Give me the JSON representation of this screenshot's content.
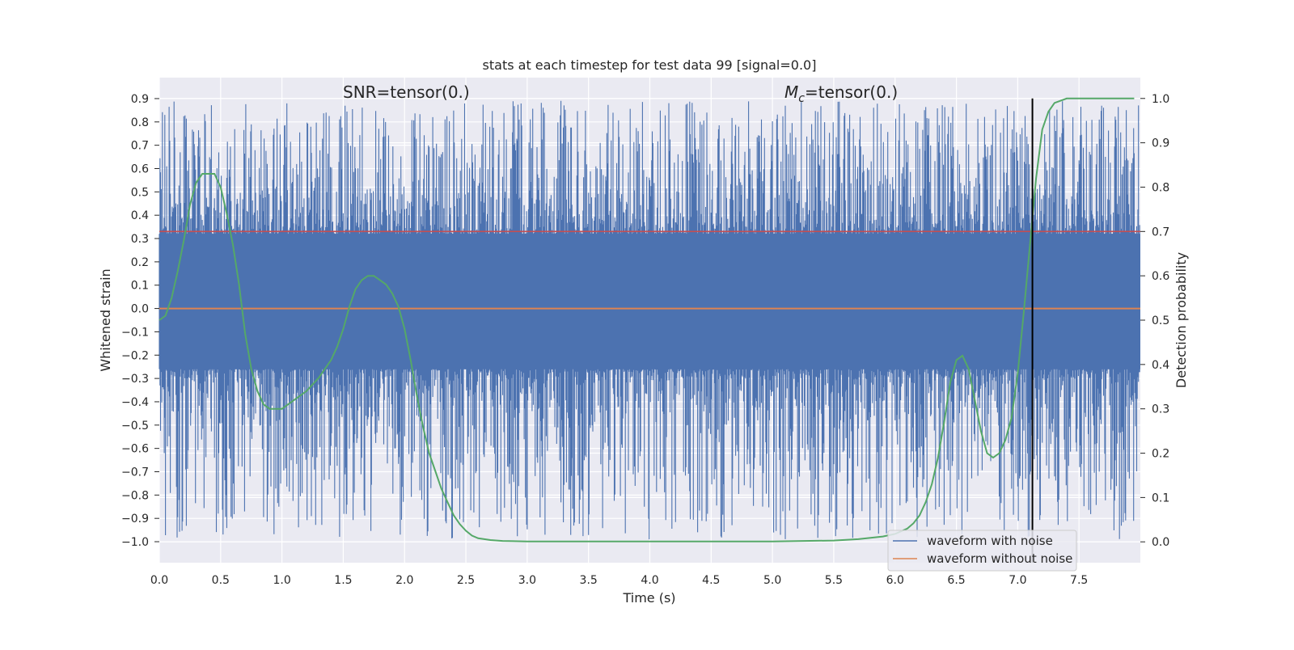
{
  "chart_data": {
    "type": "line",
    "title": "stats at each timestep for test data 99 [signal=0.0]",
    "xlabel": "Time (s)",
    "ylabel": "Whitened strain",
    "y2label": "Detection probability",
    "xlim": [
      0.0,
      8.0
    ],
    "ylim": [
      -1.09,
      0.99
    ],
    "y2lim": [
      -0.047,
      1.047
    ],
    "x_ticks": [
      0.0,
      0.5,
      1.0,
      1.5,
      2.0,
      2.5,
      3.0,
      3.5,
      4.0,
      4.5,
      5.0,
      5.5,
      6.0,
      6.5,
      7.0,
      7.5
    ],
    "x_tick_labels": [
      "0.0",
      "0.5",
      "1.0",
      "1.5",
      "2.0",
      "2.5",
      "3.0",
      "3.5",
      "4.0",
      "4.5",
      "5.0",
      "5.5",
      "6.0",
      "6.5",
      "7.0",
      "7.5"
    ],
    "y_ticks": [
      0.9,
      0.8,
      0.7,
      0.6,
      0.5,
      0.4,
      0.3,
      0.2,
      0.1,
      0.0,
      -0.1,
      -0.2,
      -0.3,
      -0.4,
      -0.5,
      -0.6,
      -0.7,
      -0.8,
      -0.9,
      -1.0
    ],
    "y_tick_labels": [
      "0.9",
      "0.8",
      "0.7",
      "0.6",
      "0.5",
      "0.4",
      "0.3",
      "0.2",
      "0.1",
      "0.0",
      "−0.1",
      "−0.2",
      "−0.3",
      "−0.4",
      "−0.5",
      "−0.6",
      "−0.7",
      "−0.8",
      "−0.9",
      "−1.0"
    ],
    "y2_ticks": [
      1.0,
      0.9,
      0.8,
      0.7,
      0.6,
      0.5,
      0.4,
      0.3,
      0.2,
      0.1,
      0.0
    ],
    "y2_tick_labels": [
      "1.0",
      "0.9",
      "0.8",
      "0.7",
      "0.6",
      "0.5",
      "0.4",
      "0.3",
      "0.2",
      "0.1",
      "0.0"
    ],
    "annotations": {
      "snr": "SNR=tensor(0.)",
      "mc_symbol": "M",
      "mc_subscript": "c",
      "mc_value": "=tensor(0.)"
    },
    "grid": true,
    "legend_position": "bottom-right",
    "series": [
      {
        "name": "waveform with noise",
        "color": "#4c72b0",
        "kind": "dense-noise",
        "typical_range": [
          -0.26,
          0.32
        ],
        "peak_max": 0.89,
        "peak_min": -0.99
      },
      {
        "name": "waveform without noise",
        "color": "#dd8452",
        "y_constant": 0.0
      }
    ],
    "probability_curve": {
      "color": "#55a868",
      "axis": "right",
      "x": [
        0.0,
        0.05,
        0.1,
        0.15,
        0.2,
        0.25,
        0.3,
        0.35,
        0.4,
        0.45,
        0.5,
        0.55,
        0.6,
        0.65,
        0.7,
        0.75,
        0.8,
        0.85,
        0.9,
        0.95,
        1.0,
        1.05,
        1.1,
        1.2,
        1.3,
        1.4,
        1.45,
        1.5,
        1.55,
        1.6,
        1.65,
        1.7,
        1.75,
        1.8,
        1.85,
        1.9,
        1.95,
        2.0,
        2.05,
        2.1,
        2.15,
        2.2,
        2.25,
        2.3,
        2.35,
        2.4,
        2.45,
        2.5,
        2.55,
        2.6,
        2.7,
        2.8,
        3.0,
        3.5,
        4.0,
        4.5,
        5.0,
        5.5,
        5.7,
        5.9,
        6.0,
        6.1,
        6.15,
        6.2,
        6.25,
        6.3,
        6.35,
        6.4,
        6.45,
        6.5,
        6.55,
        6.6,
        6.65,
        6.7,
        6.75,
        6.8,
        6.85,
        6.9,
        6.95,
        7.0,
        7.05,
        7.1,
        7.15,
        7.2,
        7.25,
        7.3,
        7.4,
        7.5,
        7.6,
        7.7,
        7.8,
        7.95
      ],
      "y": [
        0.5,
        0.51,
        0.55,
        0.61,
        0.68,
        0.76,
        0.81,
        0.83,
        0.83,
        0.83,
        0.8,
        0.74,
        0.67,
        0.58,
        0.47,
        0.39,
        0.34,
        0.31,
        0.3,
        0.3,
        0.3,
        0.31,
        0.32,
        0.34,
        0.37,
        0.41,
        0.44,
        0.48,
        0.53,
        0.57,
        0.59,
        0.6,
        0.6,
        0.59,
        0.58,
        0.56,
        0.53,
        0.48,
        0.41,
        0.33,
        0.26,
        0.2,
        0.16,
        0.12,
        0.09,
        0.06,
        0.04,
        0.025,
        0.014,
        0.008,
        0.004,
        0.002,
        0.001,
        0.001,
        0.001,
        0.001,
        0.001,
        0.003,
        0.006,
        0.012,
        0.018,
        0.03,
        0.042,
        0.06,
        0.09,
        0.13,
        0.19,
        0.27,
        0.36,
        0.41,
        0.42,
        0.39,
        0.32,
        0.25,
        0.2,
        0.19,
        0.2,
        0.23,
        0.28,
        0.38,
        0.52,
        0.67,
        0.82,
        0.93,
        0.97,
        0.99,
        1.0,
        1.0,
        1.0,
        1.0,
        1.0,
        1.0
      ]
    },
    "vertical_marker": {
      "x": 7.12,
      "color": "#000000"
    },
    "threshold_line": {
      "y": 0.7,
      "color": "#c44e52"
    }
  }
}
